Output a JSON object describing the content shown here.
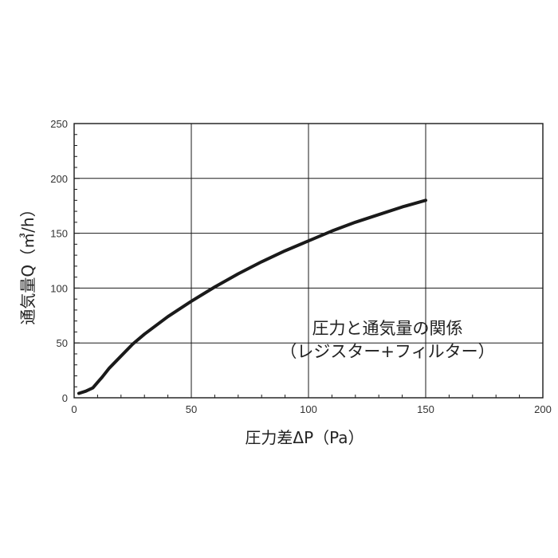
{
  "chart_data": {
    "type": "line",
    "xlabel": "圧力差ΔP（Pa）",
    "ylabel": "通気量Q（㎥/h）",
    "xlim": [
      0,
      200
    ],
    "ylim": [
      0,
      250
    ],
    "x_ticks": [
      "0",
      "50",
      "100",
      "150",
      "200"
    ],
    "y_ticks": [
      "0",
      "50",
      "100",
      "150",
      "200",
      "250"
    ],
    "grid": true,
    "annotation": {
      "line1": "圧力と通気量の関係",
      "line2": "（レジスター+フィルター）"
    },
    "series": [
      {
        "x": [
          2,
          5,
          8,
          10,
          12,
          15,
          20,
          25,
          30,
          40,
          50,
          60,
          70,
          80,
          90,
          100,
          110,
          120,
          130,
          140,
          150
        ],
        "y": [
          4,
          6,
          9,
          14,
          19,
          27,
          38,
          49,
          58,
          74,
          88,
          101,
          113,
          124,
          134,
          143,
          152,
          160,
          167,
          174,
          180
        ]
      }
    ]
  }
}
